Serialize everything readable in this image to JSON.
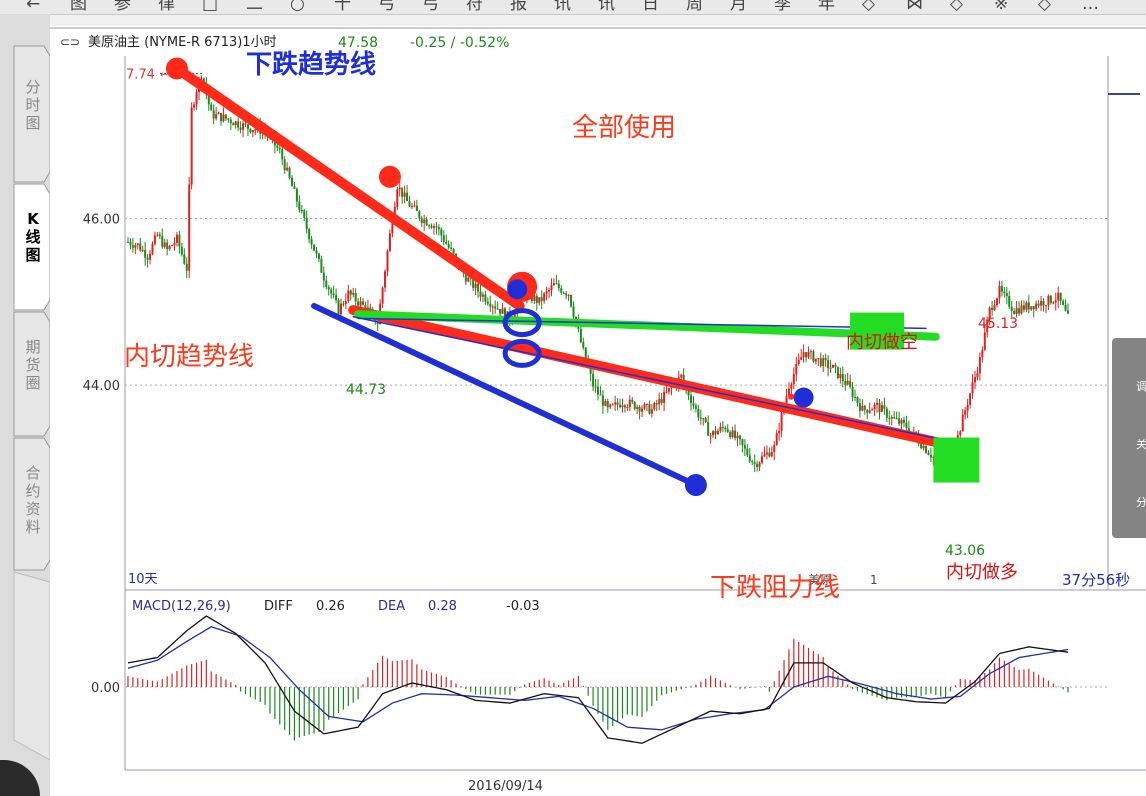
{
  "toolbar": {
    "items": [
      "←",
      "图",
      "参",
      "律",
      "□",
      "二",
      "○",
      "十",
      "弓",
      "弓",
      "符",
      "报",
      "讯",
      "讯",
      "日",
      "周",
      "月",
      "季",
      "年",
      "◇",
      "⋈",
      "◇",
      "※",
      "◇",
      "…"
    ]
  },
  "side_tabs": [
    "分时图",
    "K线图",
    "期货圈",
    "合约资料"
  ],
  "header": {
    "link_icon": "⊂⊃",
    "symbol": "美原油主 (NYME-R 6713)1小时",
    "price": "47.58",
    "change": "-0.25 / -0.52%"
  },
  "price_chart": {
    "y_ticks": [
      {
        "value": 46.0,
        "label": "46.00"
      },
      {
        "value": 44.0,
        "label": "44.00"
      }
    ],
    "ylim": [
      41.54,
      47.95
    ],
    "high_label": "7.74",
    "high_value": 47.74,
    "low_label_1": "44.73",
    "low_label_2": "43.06",
    "peak_label": "45.13",
    "period_label": "10天",
    "legend_partial": "美原",
    "legend_partial_2": "1",
    "countdown": "37分56秒",
    "date_label": "2016/09/14"
  },
  "annotations": {
    "down_trend": "下跌趋势线",
    "use_all": "全部使用",
    "inner_trend": "内切趋势线",
    "inner_short": "内切做空",
    "inner_long": "内切做多",
    "down_resistance": "下跌阻力线"
  },
  "macd": {
    "label": "MACD(12,26,9)",
    "diff_label": "DIFF",
    "diff_value": "0.26",
    "dea_label": "DEA",
    "dea_value": "0.28",
    "macd_value": "-0.03",
    "zero_label": "0.00"
  },
  "overlay": {
    "items": [
      "调",
      "关",
      "分"
    ]
  },
  "colors": {
    "bg": "#ffffff",
    "up": "#e02020",
    "down": "#1a8a1a",
    "trend_red": "#ff2a1a",
    "trend_blue": "#1f2fd8",
    "trend_green": "#22dd22"
  },
  "chart_data": {
    "type": "candlestick_with_macd",
    "title": "美原油主 (NYME-R 6713)1小时",
    "xlabel": "",
    "ylabel": "",
    "y_ticks": [
      46.0,
      44.0
    ],
    "price_path": [
      [
        0,
        45.72
      ],
      [
        4,
        45.68
      ],
      [
        8,
        45.55
      ],
      [
        12,
        45.8
      ],
      [
        16,
        45.62
      ],
      [
        20,
        45.75
      ],
      [
        24,
        45.4
      ],
      [
        26,
        47.3
      ],
      [
        28,
        47.55
      ],
      [
        30,
        47.74
      ],
      [
        34,
        47.25
      ],
      [
        40,
        47.2
      ],
      [
        48,
        47.1
      ],
      [
        56,
        47.05
      ],
      [
        62,
        46.8
      ],
      [
        68,
        46.3
      ],
      [
        74,
        45.8
      ],
      [
        80,
        45.3
      ],
      [
        86,
        44.9
      ],
      [
        90,
        45.1
      ],
      [
        94,
        45.0
      ],
      [
        98,
        44.9
      ],
      [
        102,
        44.75
      ],
      [
        106,
        45.6
      ],
      [
        110,
        46.4
      ],
      [
        114,
        46.2
      ],
      [
        120,
        46.0
      ],
      [
        126,
        45.9
      ],
      [
        132,
        45.6
      ],
      [
        138,
        45.3
      ],
      [
        144,
        45.1
      ],
      [
        150,
        44.95
      ],
      [
        156,
        44.8
      ],
      [
        162,
        45.1
      ],
      [
        168,
        45.0
      ],
      [
        174,
        45.2
      ],
      [
        180,
        45.1
      ],
      [
        186,
        44.4
      ],
      [
        190,
        44.0
      ],
      [
        196,
        43.7
      ],
      [
        202,
        43.8
      ],
      [
        208,
        43.75
      ],
      [
        214,
        43.7
      ],
      [
        220,
        43.9
      ],
      [
        226,
        44.1
      ],
      [
        232,
        43.7
      ],
      [
        238,
        43.4
      ],
      [
        244,
        43.5
      ],
      [
        250,
        43.3
      ],
      [
        256,
        43.05
      ],
      [
        260,
        43.15
      ],
      [
        264,
        43.25
      ],
      [
        270,
        44.0
      ],
      [
        276,
        44.4
      ],
      [
        282,
        44.3
      ],
      [
        288,
        44.2
      ],
      [
        294,
        44.0
      ],
      [
        300,
        43.7
      ],
      [
        306,
        43.75
      ],
      [
        312,
        43.6
      ],
      [
        318,
        43.5
      ],
      [
        324,
        43.3
      ],
      [
        330,
        43.1
      ],
      [
        336,
        43.06
      ],
      [
        342,
        43.7
      ],
      [
        348,
        44.3
      ],
      [
        352,
        44.9
      ],
      [
        356,
        45.13
      ],
      [
        362,
        44.9
      ],
      [
        368,
        44.95
      ],
      [
        374,
        45.0
      ],
      [
        380,
        45.05
      ],
      [
        384,
        44.8
      ]
    ],
    "x_max": 384,
    "macd_diff": [
      [
        0,
        0.18
      ],
      [
        12,
        0.22
      ],
      [
        24,
        0.42
      ],
      [
        32,
        0.53
      ],
      [
        44,
        0.4
      ],
      [
        56,
        0.18
      ],
      [
        68,
        -0.18
      ],
      [
        80,
        -0.35
      ],
      [
        94,
        -0.3
      ],
      [
        104,
        -0.05
      ],
      [
        116,
        0.03
      ],
      [
        130,
        -0.02
      ],
      [
        142,
        -0.1
      ],
      [
        156,
        -0.12
      ],
      [
        170,
        -0.05
      ],
      [
        184,
        -0.08
      ],
      [
        196,
        -0.38
      ],
      [
        210,
        -0.42
      ],
      [
        224,
        -0.3
      ],
      [
        238,
        -0.18
      ],
      [
        250,
        -0.2
      ],
      [
        262,
        -0.16
      ],
      [
        272,
        0.18
      ],
      [
        284,
        0.18
      ],
      [
        296,
        0.03
      ],
      [
        310,
        -0.08
      ],
      [
        322,
        -0.11
      ],
      [
        334,
        -0.12
      ],
      [
        346,
        0.04
      ],
      [
        356,
        0.25
      ],
      [
        368,
        0.3
      ],
      [
        384,
        0.26
      ]
    ],
    "macd_dea": [
      [
        0,
        0.14
      ],
      [
        12,
        0.2
      ],
      [
        24,
        0.34
      ],
      [
        34,
        0.45
      ],
      [
        46,
        0.38
      ],
      [
        58,
        0.22
      ],
      [
        70,
        -0.02
      ],
      [
        82,
        -0.22
      ],
      [
        96,
        -0.26
      ],
      [
        108,
        -0.12
      ],
      [
        120,
        -0.05
      ],
      [
        134,
        -0.06
      ],
      [
        148,
        -0.08
      ],
      [
        162,
        -0.1
      ],
      [
        176,
        -0.07
      ],
      [
        190,
        -0.16
      ],
      [
        204,
        -0.3
      ],
      [
        218,
        -0.32
      ],
      [
        232,
        -0.24
      ],
      [
        246,
        -0.2
      ],
      [
        260,
        -0.17
      ],
      [
        272,
        0.0
      ],
      [
        286,
        0.08
      ],
      [
        300,
        0.02
      ],
      [
        314,
        -0.05
      ],
      [
        328,
        -0.09
      ],
      [
        340,
        -0.07
      ],
      [
        352,
        0.1
      ],
      [
        364,
        0.22
      ],
      [
        384,
        0.28
      ]
    ],
    "macd_ylim": [
      -0.62,
      0.62
    ],
    "trendlines": [
      {
        "name": "down_trend_red",
        "color": "red",
        "from": [
          20,
          47.8
        ],
        "to": [
          160,
          44.95
        ]
      },
      {
        "name": "support_blue",
        "color": "blue",
        "from": [
          76,
          44.95
        ],
        "to": [
          232,
          42.8
        ]
      },
      {
        "name": "inner_red",
        "color": "red",
        "from": [
          92,
          44.9
        ],
        "to": [
          340,
          43.25
        ]
      },
      {
        "name": "inner_green",
        "color": "green",
        "from": [
          94,
          44.85
        ],
        "to": [
          330,
          44.58
        ]
      },
      {
        "name": "inner_blue_thin",
        "color": "blue",
        "from": [
          92,
          44.82
        ],
        "to": [
          340,
          43.3
        ]
      },
      {
        "name": "thin_blue_2",
        "color": "blue",
        "from": [
          94,
          44.8
        ],
        "to": [
          326,
          44.68
        ]
      }
    ]
  }
}
